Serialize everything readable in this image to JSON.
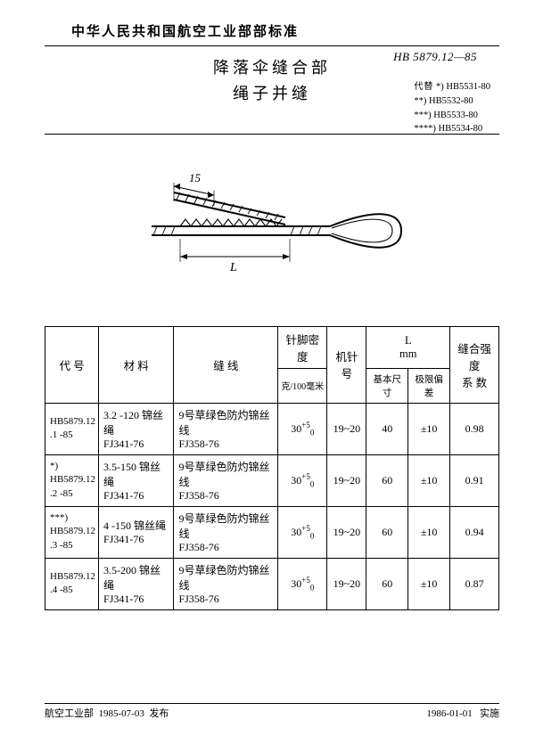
{
  "header": {
    "org": "中华人民共和国航空工业部部标准",
    "std_no": "HB 5879.12—85",
    "title_1": "降落伞缝合部",
    "title_2": "绳子并缝",
    "replaces_label": "代替",
    "refs": [
      "*) HB5531-80",
      "**) HB5532-80",
      "***) HB5533-80",
      "****) HB5534-80"
    ]
  },
  "diagram": {
    "dim_top": "15",
    "dim_span": "L",
    "stroke": "#000000",
    "stroke_w": 1.6
  },
  "table": {
    "headers": {
      "code": "代 号",
      "material": "材 料",
      "thread": "缝 线",
      "density": "针脚密度",
      "density_unit": "克/100毫米",
      "needle": "机针号",
      "L_group": "L\nmm",
      "L_basic": "基本尺寸",
      "L_tol": "极限偏差",
      "strength": "缝合强度\n系 数"
    },
    "rows": [
      {
        "code": "HB5879.12\n.1 -85",
        "material": "3.2 -120 锦丝绳\nFJ341-76",
        "thread": "9号草绿色防灼锦丝线\nFJ358-76",
        "density": "30",
        "density_sup": "+5",
        "density_sub": "0",
        "needle": "19~20",
        "L_basic": "40",
        "L_tol": "±10",
        "strength": "0.98"
      },
      {
        "code": "*)\nHB5879.12\n.2 -85",
        "material": "3.5-150 锦丝绳\nFJ341-76",
        "thread": "9号草绿色防灼锦丝线\nFJ358-76",
        "density": "30",
        "density_sup": "+5",
        "density_sub": "0",
        "needle": "19~20",
        "L_basic": "60",
        "L_tol": "±10",
        "strength": "0.91"
      },
      {
        "code": "***)\nHB5879.12\n.3 -85",
        "material": "4 -150 锦丝绳\nFJ341-76",
        "thread": "9号草绿色防灼锦丝线\nFJ358-76",
        "density": "30",
        "density_sup": "+5",
        "density_sub": "0",
        "needle": "19~20",
        "L_basic": "60",
        "L_tol": "±10",
        "strength": "0.94"
      },
      {
        "code": "HB5879.12\n.4 -85",
        "material": "3.5-200 锦丝绳\nFJ341-76",
        "thread": "9号草绿色防灼锦丝线\nFJ358-76",
        "density": "30",
        "density_sup": "+5",
        "density_sub": "0",
        "needle": "19~20",
        "L_basic": "60",
        "L_tol": "±10",
        "strength": "0.87"
      }
    ]
  },
  "footer": {
    "issuer": "航空工业部",
    "issue_date": "1985-07-03",
    "issue_label": "发布",
    "effective_date": "1986-01-01",
    "effective_label": "实施"
  }
}
